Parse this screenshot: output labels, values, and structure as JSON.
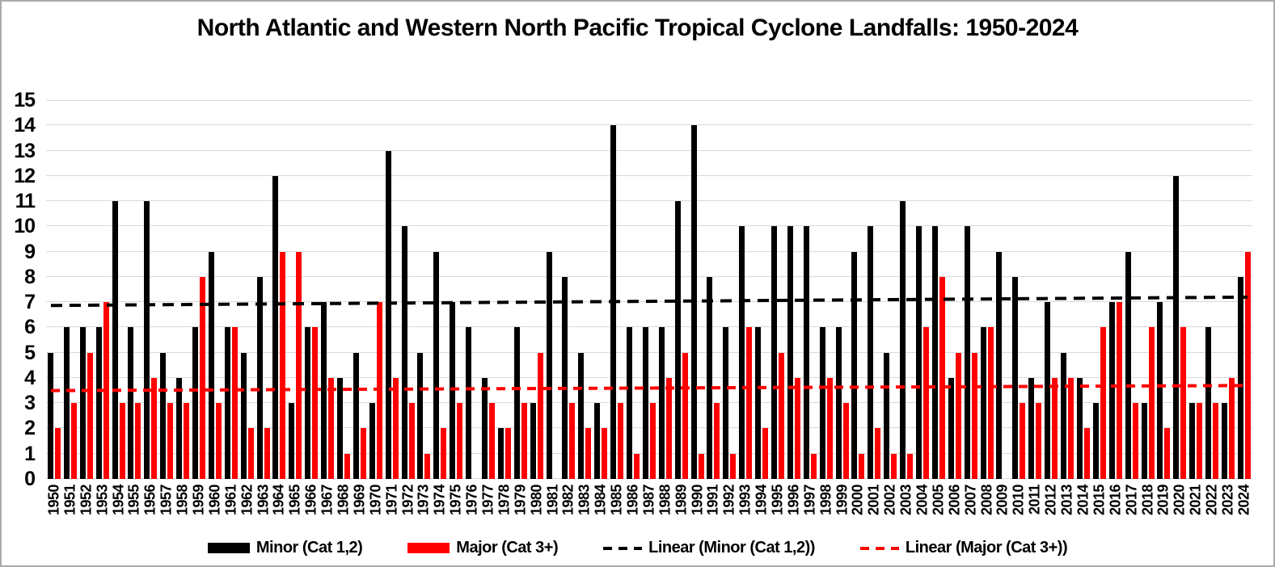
{
  "title": "North Atlantic and Western North Pacific Tropical Cyclone Landfalls: 1950-2024",
  "colors": {
    "minor": "#000000",
    "major": "#ff0000",
    "gridline": "#d9d9d9",
    "background": "#ffffff",
    "border": "#ababab"
  },
  "chart_data": {
    "type": "bar",
    "title": "North Atlantic and Western North Pacific Tropical Cyclone Landfalls: 1950-2024",
    "xlabel": "",
    "ylabel": "",
    "ylim": [
      0,
      15
    ],
    "yticks": [
      "0",
      "1",
      "2",
      "3",
      "4",
      "5",
      "6",
      "7",
      "8",
      "9",
      "10",
      "11",
      "12",
      "13",
      "14",
      "15"
    ],
    "grid": true,
    "legend_position": "bottom",
    "categories": [
      "1950",
      "1951",
      "1952",
      "1953",
      "1954",
      "1955",
      "1956",
      "1957",
      "1958",
      "1959",
      "1960",
      "1961",
      "1962",
      "1963",
      "1964",
      "1965",
      "1966",
      "1967",
      "1968",
      "1969",
      "1970",
      "1971",
      "1972",
      "1973",
      "1974",
      "1975",
      "1976",
      "1977",
      "1978",
      "1979",
      "1980",
      "1981",
      "1982",
      "1983",
      "1984",
      "1985",
      "1986",
      "1987",
      "1988",
      "1989",
      "1990",
      "1991",
      "1992",
      "1993",
      "1994",
      "1995",
      "1996",
      "1997",
      "1998",
      "1999",
      "2000",
      "2001",
      "2002",
      "2003",
      "2004",
      "2005",
      "2006",
      "2007",
      "2008",
      "2009",
      "2010",
      "2011",
      "2012",
      "2013",
      "2014",
      "2015",
      "2016",
      "2017",
      "2018",
      "2019",
      "2020",
      "2021",
      "2022",
      "2023",
      "2024"
    ],
    "series": [
      {
        "name": "Minor (Cat 1,2)",
        "color": "#000000",
        "values": [
          5,
          6,
          6,
          6,
          11,
          6,
          11,
          5,
          4,
          6,
          9,
          6,
          5,
          8,
          12,
          3,
          6,
          7,
          4,
          5,
          3,
          13,
          10,
          5,
          9,
          7,
          6,
          4,
          2,
          6,
          3,
          9,
          8,
          5,
          3,
          14,
          6,
          6,
          6,
          11,
          14,
          8,
          6,
          10,
          6,
          10,
          10,
          10,
          6,
          6,
          9,
          10,
          5,
          11,
          10,
          10,
          4,
          10,
          6,
          9,
          8,
          4,
          7,
          5,
          4,
          3,
          7,
          9,
          3,
          7,
          12,
          3,
          6,
          3,
          8
        ]
      },
      {
        "name": "Major (Cat 3+)",
        "color": "#ff0000",
        "values": [
          2,
          3,
          5,
          7,
          3,
          3,
          4,
          3,
          3,
          8,
          3,
          6,
          2,
          2,
          9,
          9,
          6,
          4,
          1,
          2,
          7,
          4,
          3,
          1,
          2,
          3,
          0,
          3,
          2,
          3,
          5,
          0,
          3,
          2,
          2,
          3,
          1,
          3,
          4,
          5,
          1,
          3,
          1,
          6,
          2,
          5,
          4,
          1,
          4,
          3,
          1,
          2,
          1,
          1,
          6,
          8,
          5,
          5,
          6,
          0,
          3,
          3,
          4,
          4,
          2,
          6,
          7,
          3,
          6,
          2,
          6,
          3,
          3,
          4,
          9
        ]
      }
    ],
    "trend_lines": [
      {
        "name": "Linear (Minor (Cat 1,2))",
        "color": "#000000",
        "start_value": 6.87,
        "end_value": 7.2,
        "dash": "14 9"
      },
      {
        "name": "Linear (Major (Cat 3+))",
        "color": "#ff0000",
        "start_value": 3.5,
        "end_value": 3.7,
        "dash": "11 8"
      }
    ]
  },
  "legend": {
    "items": [
      {
        "label": "Minor (Cat 1,2)",
        "color": "#000000",
        "swatch": "rect"
      },
      {
        "label": "Major (Cat 3+)",
        "color": "#ff0000",
        "swatch": "rect"
      },
      {
        "label": "Linear (Minor (Cat 1,2))",
        "color": "#000000",
        "swatch": "dashes"
      },
      {
        "label": "Linear (Major (Cat 3+))",
        "color": "#ff0000",
        "swatch": "dashes"
      }
    ]
  }
}
